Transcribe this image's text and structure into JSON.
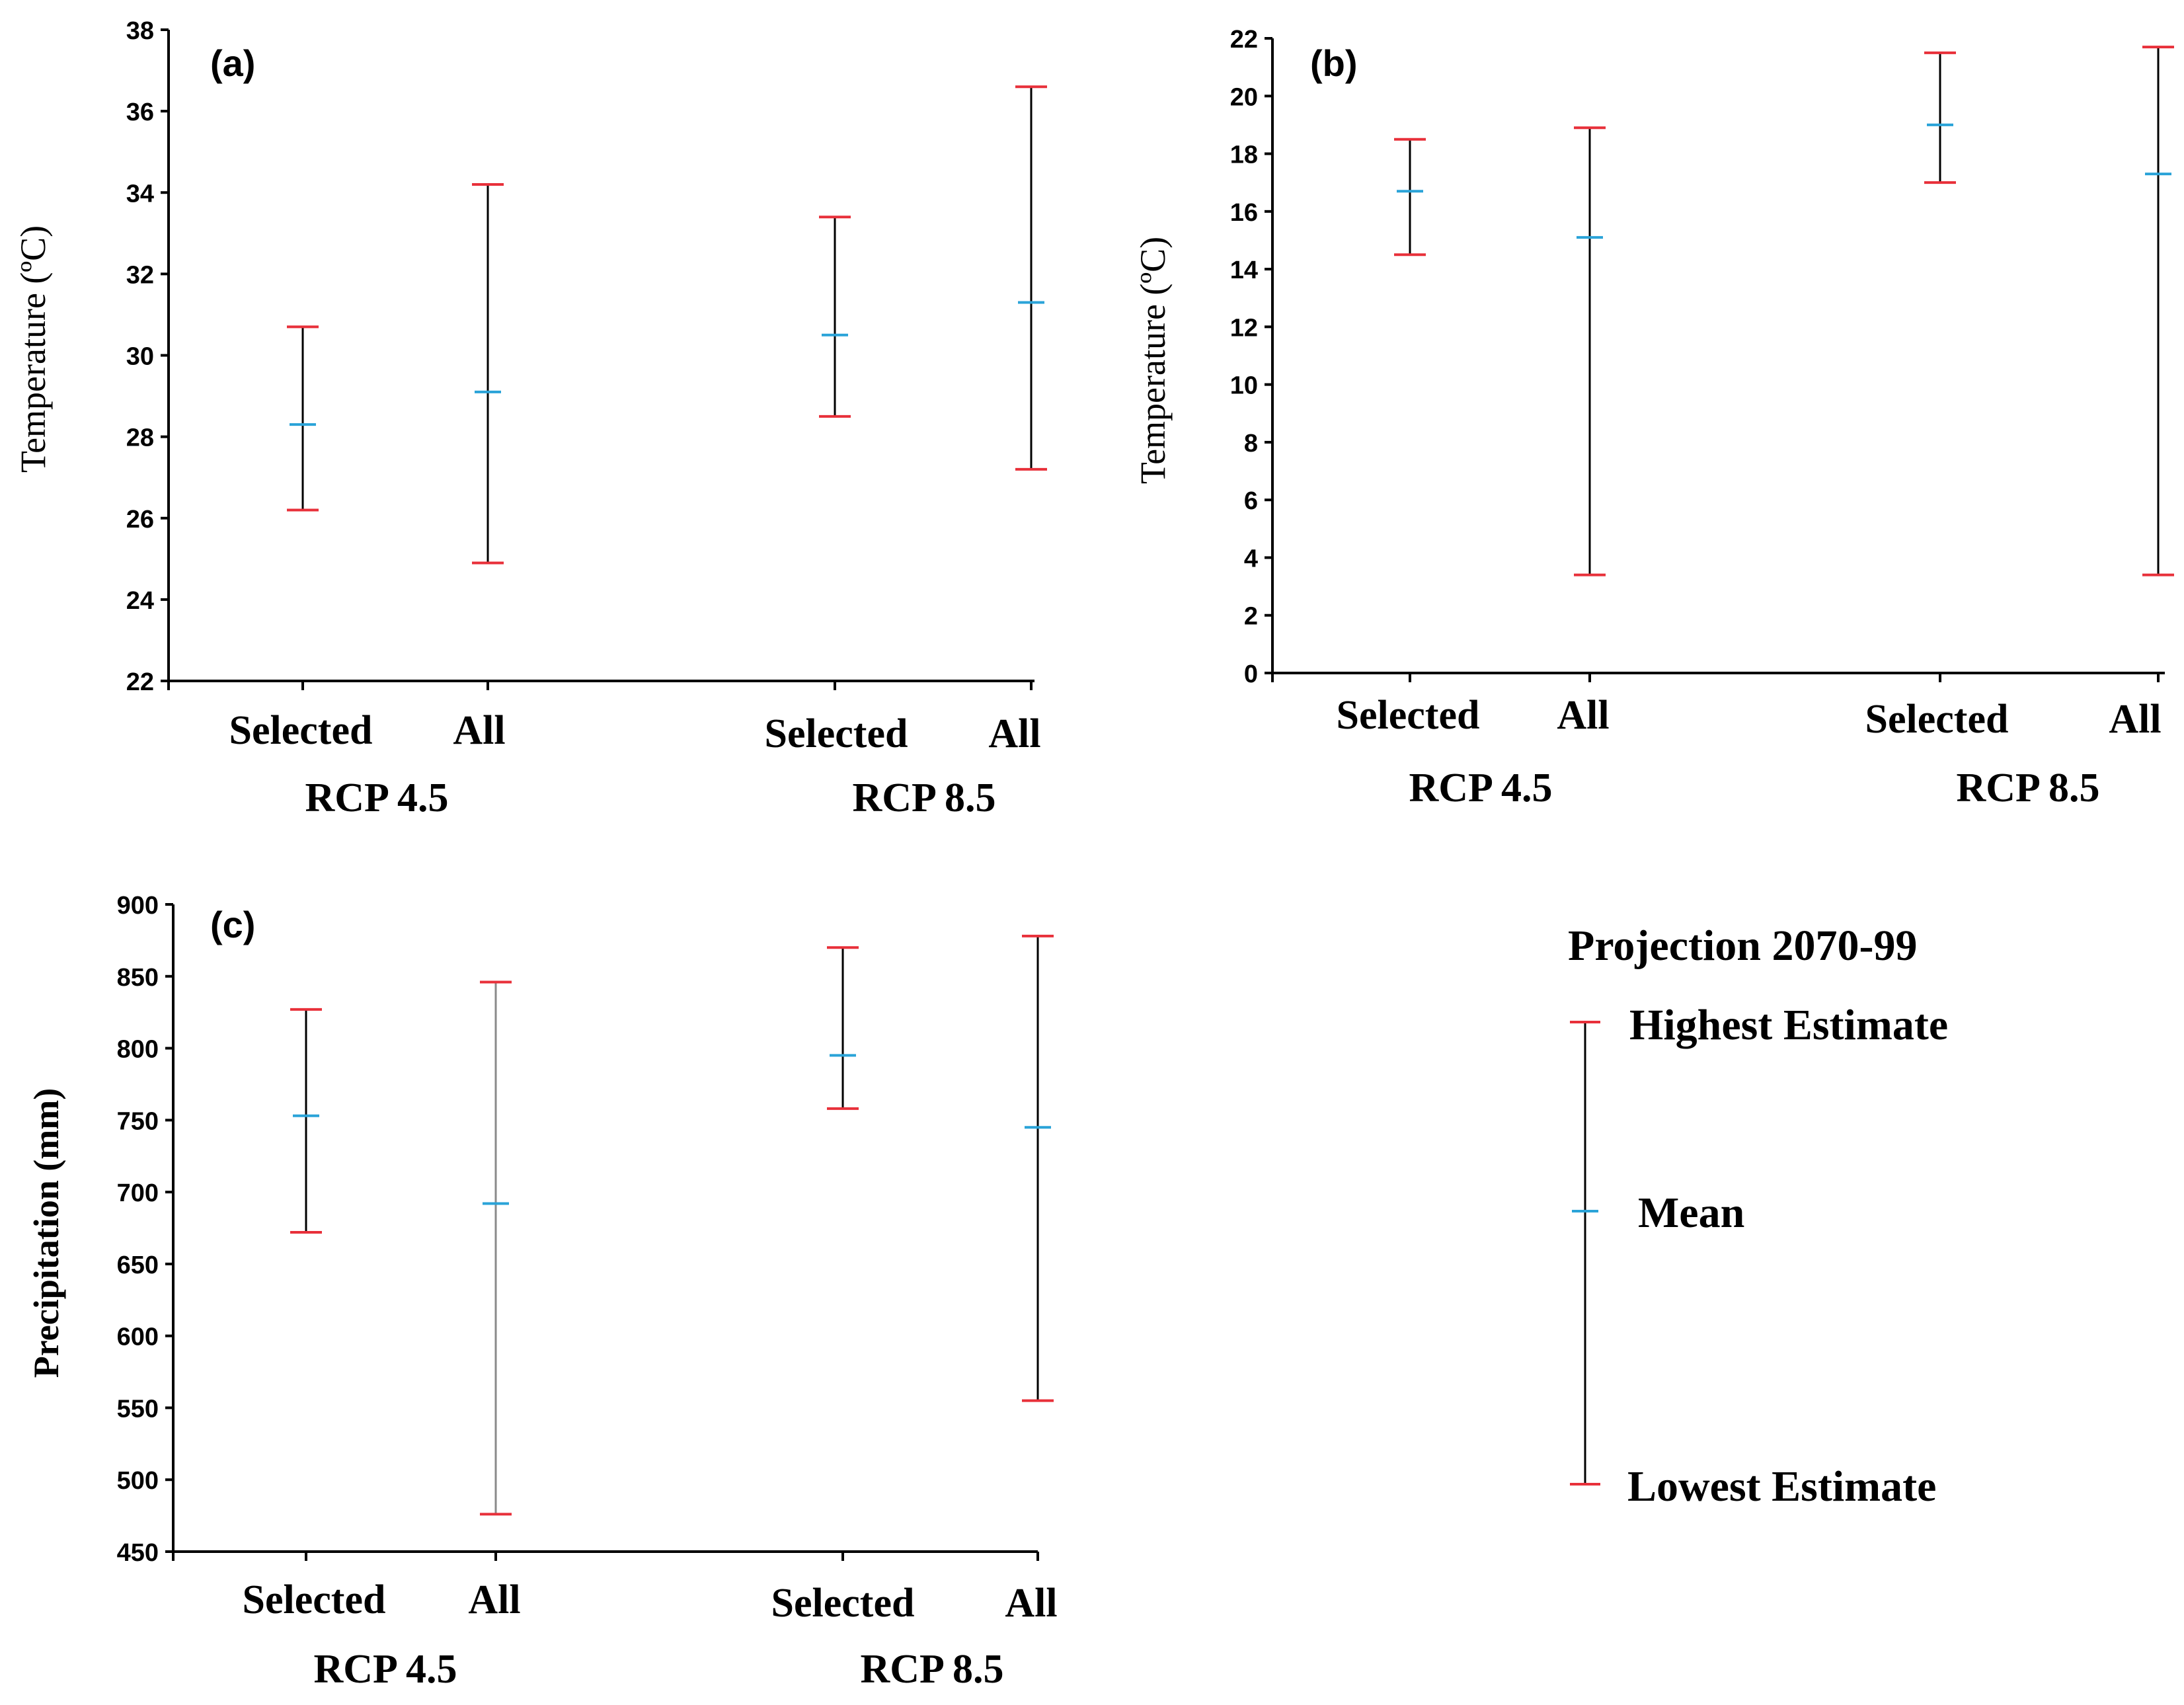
{
  "colors": {
    "high": "#e8303a",
    "low": "#e8303a",
    "mean": "#2aa3d8",
    "line": "#000000",
    "faint_line": "#8a8a8a"
  },
  "chart_data": [
    {
      "id": "a",
      "type": "error-bar",
      "panel_label": "(a)",
      "ylabel": "Temperature (ºC)",
      "ylim": [
        22,
        38
      ],
      "yticks": [
        22,
        24,
        26,
        28,
        30,
        32,
        34,
        36,
        38
      ],
      "categories": [
        "Selected",
        "All",
        "Selected",
        "All"
      ],
      "groups": [
        "RCP 4.5",
        "RCP 8.5"
      ],
      "series": [
        {
          "name": "Highest Estimate",
          "values": [
            30.7,
            34.2,
            33.4,
            36.6
          ]
        },
        {
          "name": "Mean",
          "values": [
            28.3,
            29.1,
            30.5,
            31.3
          ]
        },
        {
          "name": "Lowest Estimate",
          "values": [
            26.2,
            24.9,
            28.5,
            27.2
          ]
        }
      ]
    },
    {
      "id": "b",
      "type": "error-bar",
      "panel_label": "(b)",
      "ylabel": "Temperature (ºC)",
      "ylim": [
        0,
        22
      ],
      "yticks": [
        0,
        2,
        4,
        6,
        8,
        10,
        12,
        14,
        16,
        18,
        20,
        22
      ],
      "categories": [
        "Selected",
        "All",
        "Selected",
        "All"
      ],
      "groups": [
        "RCP 4.5",
        "RCP 8.5"
      ],
      "series": [
        {
          "name": "Highest Estimate",
          "values": [
            18.5,
            18.9,
            21.5,
            21.7
          ]
        },
        {
          "name": "Mean",
          "values": [
            16.7,
            15.1,
            19.0,
            17.3
          ]
        },
        {
          "name": "Lowest Estimate",
          "values": [
            14.5,
            3.4,
            17.0,
            3.4
          ]
        }
      ]
    },
    {
      "id": "c",
      "type": "error-bar",
      "panel_label": "(c)",
      "ylabel": "Precipitation (mm)",
      "ylim": [
        450,
        900
      ],
      "yticks": [
        450,
        500,
        550,
        600,
        650,
        700,
        750,
        800,
        850,
        900
      ],
      "categories": [
        "Selected",
        "All",
        "Selected",
        "All"
      ],
      "groups": [
        "RCP 4.5",
        "RCP 8.5"
      ],
      "series": [
        {
          "name": "Highest Estimate",
          "values": [
            827,
            846,
            870,
            878
          ]
        },
        {
          "name": "Mean",
          "values": [
            753,
            692,
            795,
            745
          ]
        },
        {
          "name": "Lowest Estimate",
          "values": [
            672,
            476,
            758,
            555
          ]
        }
      ]
    }
  ],
  "legend": {
    "title": "Projection 2070-99",
    "highest": "Highest Estimate",
    "mean": "Mean",
    "lowest": "Lowest Estimate"
  }
}
